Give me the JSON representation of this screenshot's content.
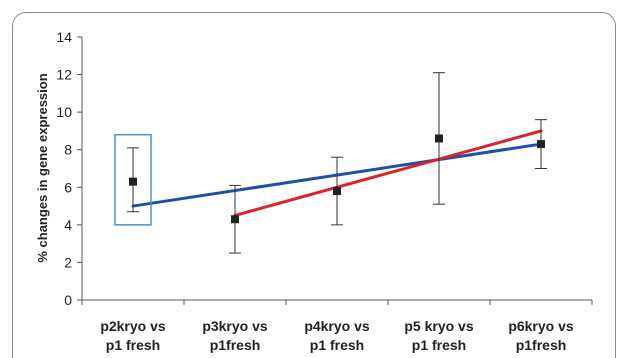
{
  "chart_data": {
    "type": "scatter",
    "ylabel": "% changes in gene expression",
    "xlabel": "",
    "ylim": [
      0,
      14
    ],
    "yticks": [
      0,
      2,
      4,
      6,
      8,
      10,
      12,
      14
    ],
    "categories": [
      [
        "p2kryo vs",
        "p1 fresh"
      ],
      [
        "p3kryo vs",
        "p1fresh"
      ],
      [
        "p4kryo vs",
        "p1 fresh"
      ],
      [
        "p5 kryo vs",
        "p1 fresh"
      ],
      [
        "p6kryo vs",
        "p1fresh"
      ]
    ],
    "series": [
      {
        "values": [
          6.3,
          4.3,
          5.8,
          8.6,
          8.3
        ],
        "error_low": [
          4.7,
          2.5,
          4.0,
          5.1,
          7.0
        ],
        "error_high": [
          8.1,
          6.1,
          7.6,
          12.1,
          9.6
        ]
      }
    ],
    "trendlines": [
      {
        "color": "#1f4fa8",
        "from": [
          1,
          5.0
        ],
        "to": [
          5,
          8.3
        ]
      },
      {
        "color": "#d9232d",
        "from": [
          2,
          4.5
        ],
        "to": [
          5,
          9.0
        ]
      }
    ],
    "highlight_box": {
      "category_index": 0,
      "ymin": 4.0,
      "ymax": 8.8,
      "color": "#4a8fd0"
    },
    "marker_color": "#222222",
    "grid": false
  }
}
